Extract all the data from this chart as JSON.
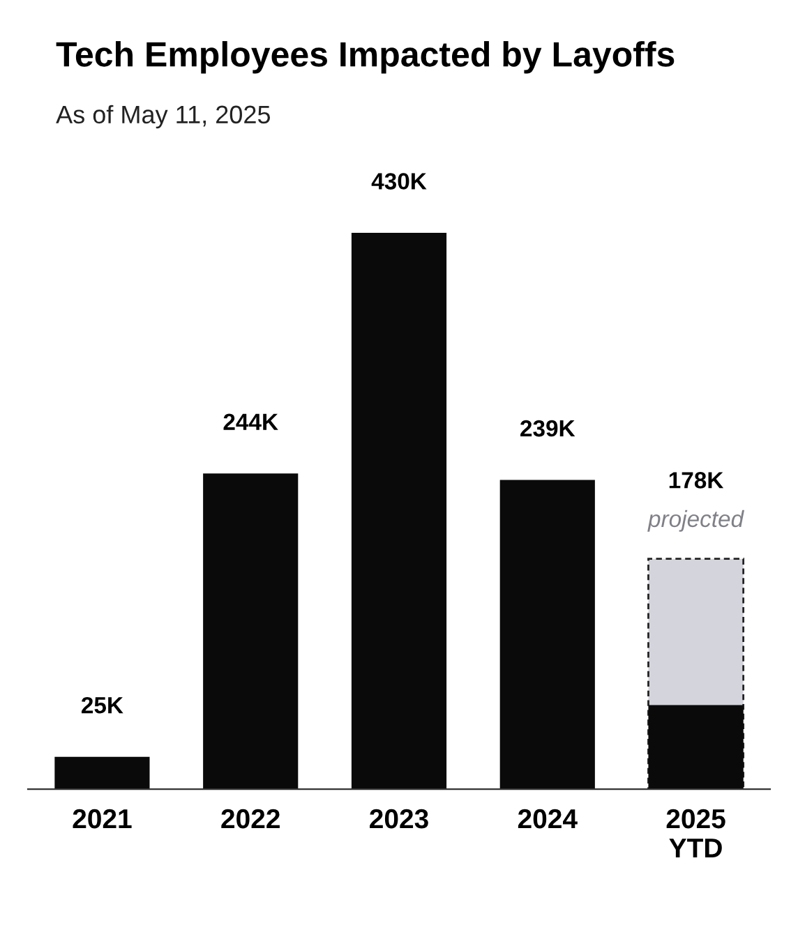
{
  "chart_data": {
    "type": "bar",
    "title": "Tech Employees Impacted by Layoffs",
    "subtitle": "As of May 11, 2025",
    "categories": [
      "2021",
      "2022",
      "2023",
      "2024",
      "2025\nYTD"
    ],
    "stacked": false,
    "series": [
      {
        "color": "#d4d4dc",
        "line_style": "dashed",
        "values": [
          null,
          null,
          null,
          null,
          178
        ],
        "value_labels": [
          null,
          null,
          null,
          null,
          "178K"
        ]
      },
      {
        "color": "#0a0a0a",
        "values": [
          25,
          244,
          430,
          239,
          65
        ],
        "value_labels": [
          "25K",
          "244K",
          "430K",
          "239K",
          null
        ]
      }
    ],
    "annotations": [
      {
        "text": "projected",
        "x": "2025\nYTD",
        "y": 178
      }
    ],
    "tick_labels": "x",
    "grid": false,
    "legend": false
  }
}
